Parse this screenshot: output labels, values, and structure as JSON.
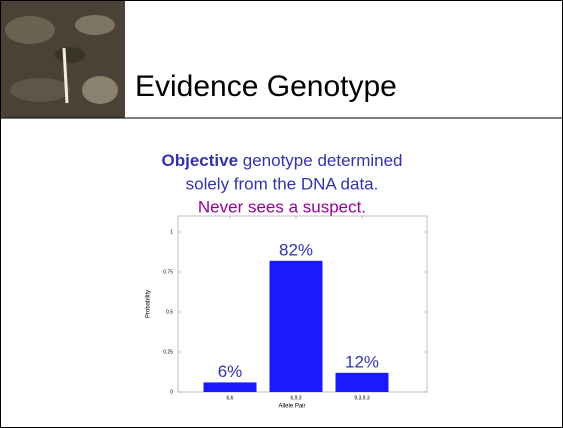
{
  "slide": {
    "title": "Evidence Genotype",
    "lines": [
      {
        "bold": "Objective",
        "rest": "genotype determined"
      },
      "solely from the DNA data.",
      "Never sees a suspect."
    ]
  },
  "chart_data": {
    "type": "bar",
    "categories": [
      "6,6",
      "6,9.3",
      "9.3,9.3"
    ],
    "values": [
      0.06,
      0.82,
      0.12
    ],
    "value_labels": [
      "6%",
      "82%",
      "12%"
    ],
    "color": "#1a1aff",
    "xlabel": "Allele Pair",
    "ylabel": "Probability",
    "ylim": [
      0,
      1.1
    ],
    "yticks": [
      0,
      0.25,
      0.5,
      0.75,
      1
    ]
  }
}
